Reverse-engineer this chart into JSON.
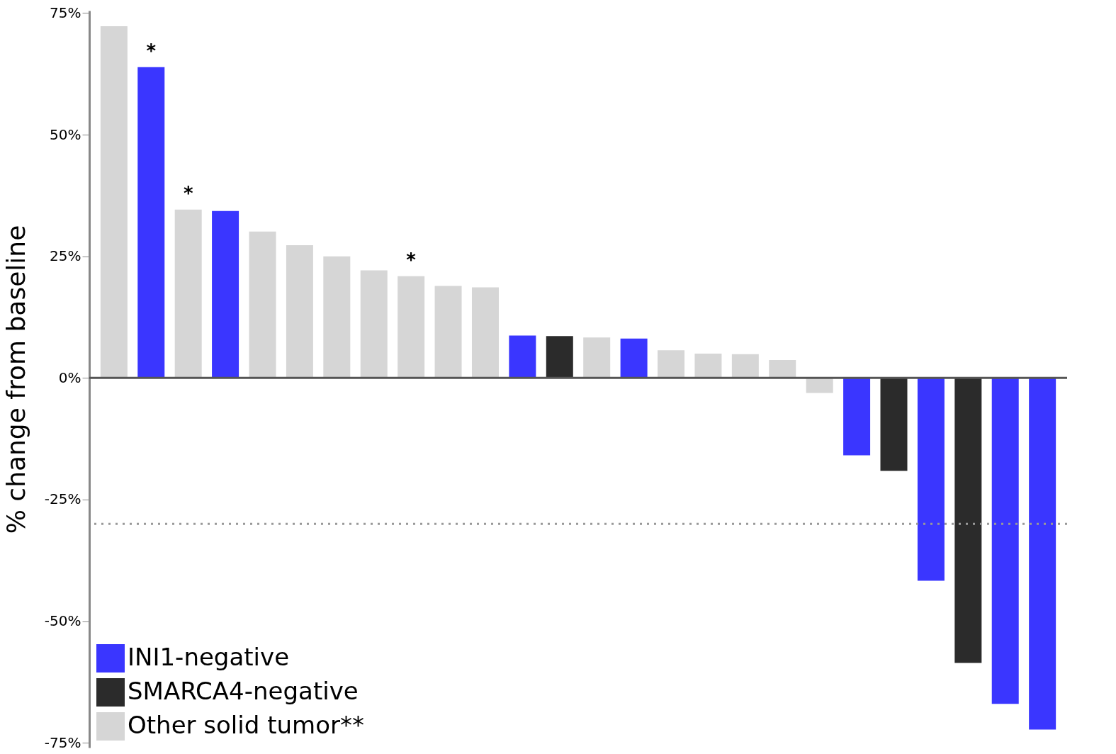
{
  "chart_data": {
    "type": "bar",
    "ylabel": "% change from baseline",
    "categories": [
      null,
      null,
      null,
      null,
      null,
      null,
      null,
      null,
      null,
      null,
      null,
      null,
      null,
      null,
      null,
      null,
      null,
      null,
      null,
      null,
      null,
      null,
      null,
      null,
      null,
      null
    ],
    "series": [
      {
        "name": "INI1-negative",
        "color": "#3a36ff",
        "values": [
          null,
          63.9,
          null,
          34.3,
          null,
          null,
          null,
          null,
          null,
          null,
          null,
          8.7,
          null,
          null,
          8.1,
          null,
          null,
          null,
          null,
          null,
          -15.9,
          null,
          -41.7,
          null,
          -67.0,
          -72.3
        ],
        "value_labels": [
          null,
          "*",
          null,
          null,
          null,
          null,
          null,
          null,
          null,
          null,
          null,
          null,
          null,
          null,
          null,
          null,
          null,
          null,
          null,
          null,
          null,
          null,
          null,
          null,
          null,
          null
        ]
      },
      {
        "name": "SMARCA4-negative",
        "color": "#2b2b2b",
        "values": [
          null,
          null,
          null,
          null,
          null,
          null,
          null,
          null,
          null,
          null,
          null,
          null,
          8.6,
          null,
          null,
          null,
          null,
          null,
          null,
          null,
          null,
          -19.1,
          null,
          -58.6,
          null,
          null
        ]
      },
      {
        "name": "Other solid tumor**",
        "color": "#d6d6d6",
        "values": [
          72.3,
          null,
          34.6,
          null,
          30.1,
          27.3,
          25.0,
          22.1,
          20.9,
          18.9,
          18.6,
          null,
          null,
          8.3,
          null,
          5.7,
          5.0,
          4.9,
          3.7,
          -3.1,
          null,
          null,
          null,
          null,
          null,
          null
        ],
        "value_labels": [
          null,
          null,
          "*",
          null,
          null,
          null,
          null,
          null,
          "*",
          null,
          null,
          null,
          null,
          null,
          null,
          null,
          null,
          null,
          null,
          null,
          null,
          null,
          null,
          null,
          null,
          null
        ]
      }
    ],
    "ylim": [
      -76,
      75.5
    ],
    "yticks": [
      {
        "value": 75,
        "label": "75%"
      },
      {
        "value": 50,
        "label": "50%"
      },
      {
        "value": 25,
        "label": "25%"
      },
      {
        "value": 0,
        "label": "0%"
      },
      {
        "value": -25,
        "label": "-25%"
      },
      {
        "value": -50,
        "label": "-50%"
      },
      {
        "value": -75,
        "label": "-75%"
      }
    ],
    "ref_lines": [
      {
        "axis": "y",
        "value": 0,
        "color": "#555555",
        "line_style": "solid"
      },
      {
        "axis": "y",
        "value": -30,
        "color": "#999999",
        "line_style": "dotted"
      }
    ],
    "grid": false,
    "legend": "bottom left"
  }
}
